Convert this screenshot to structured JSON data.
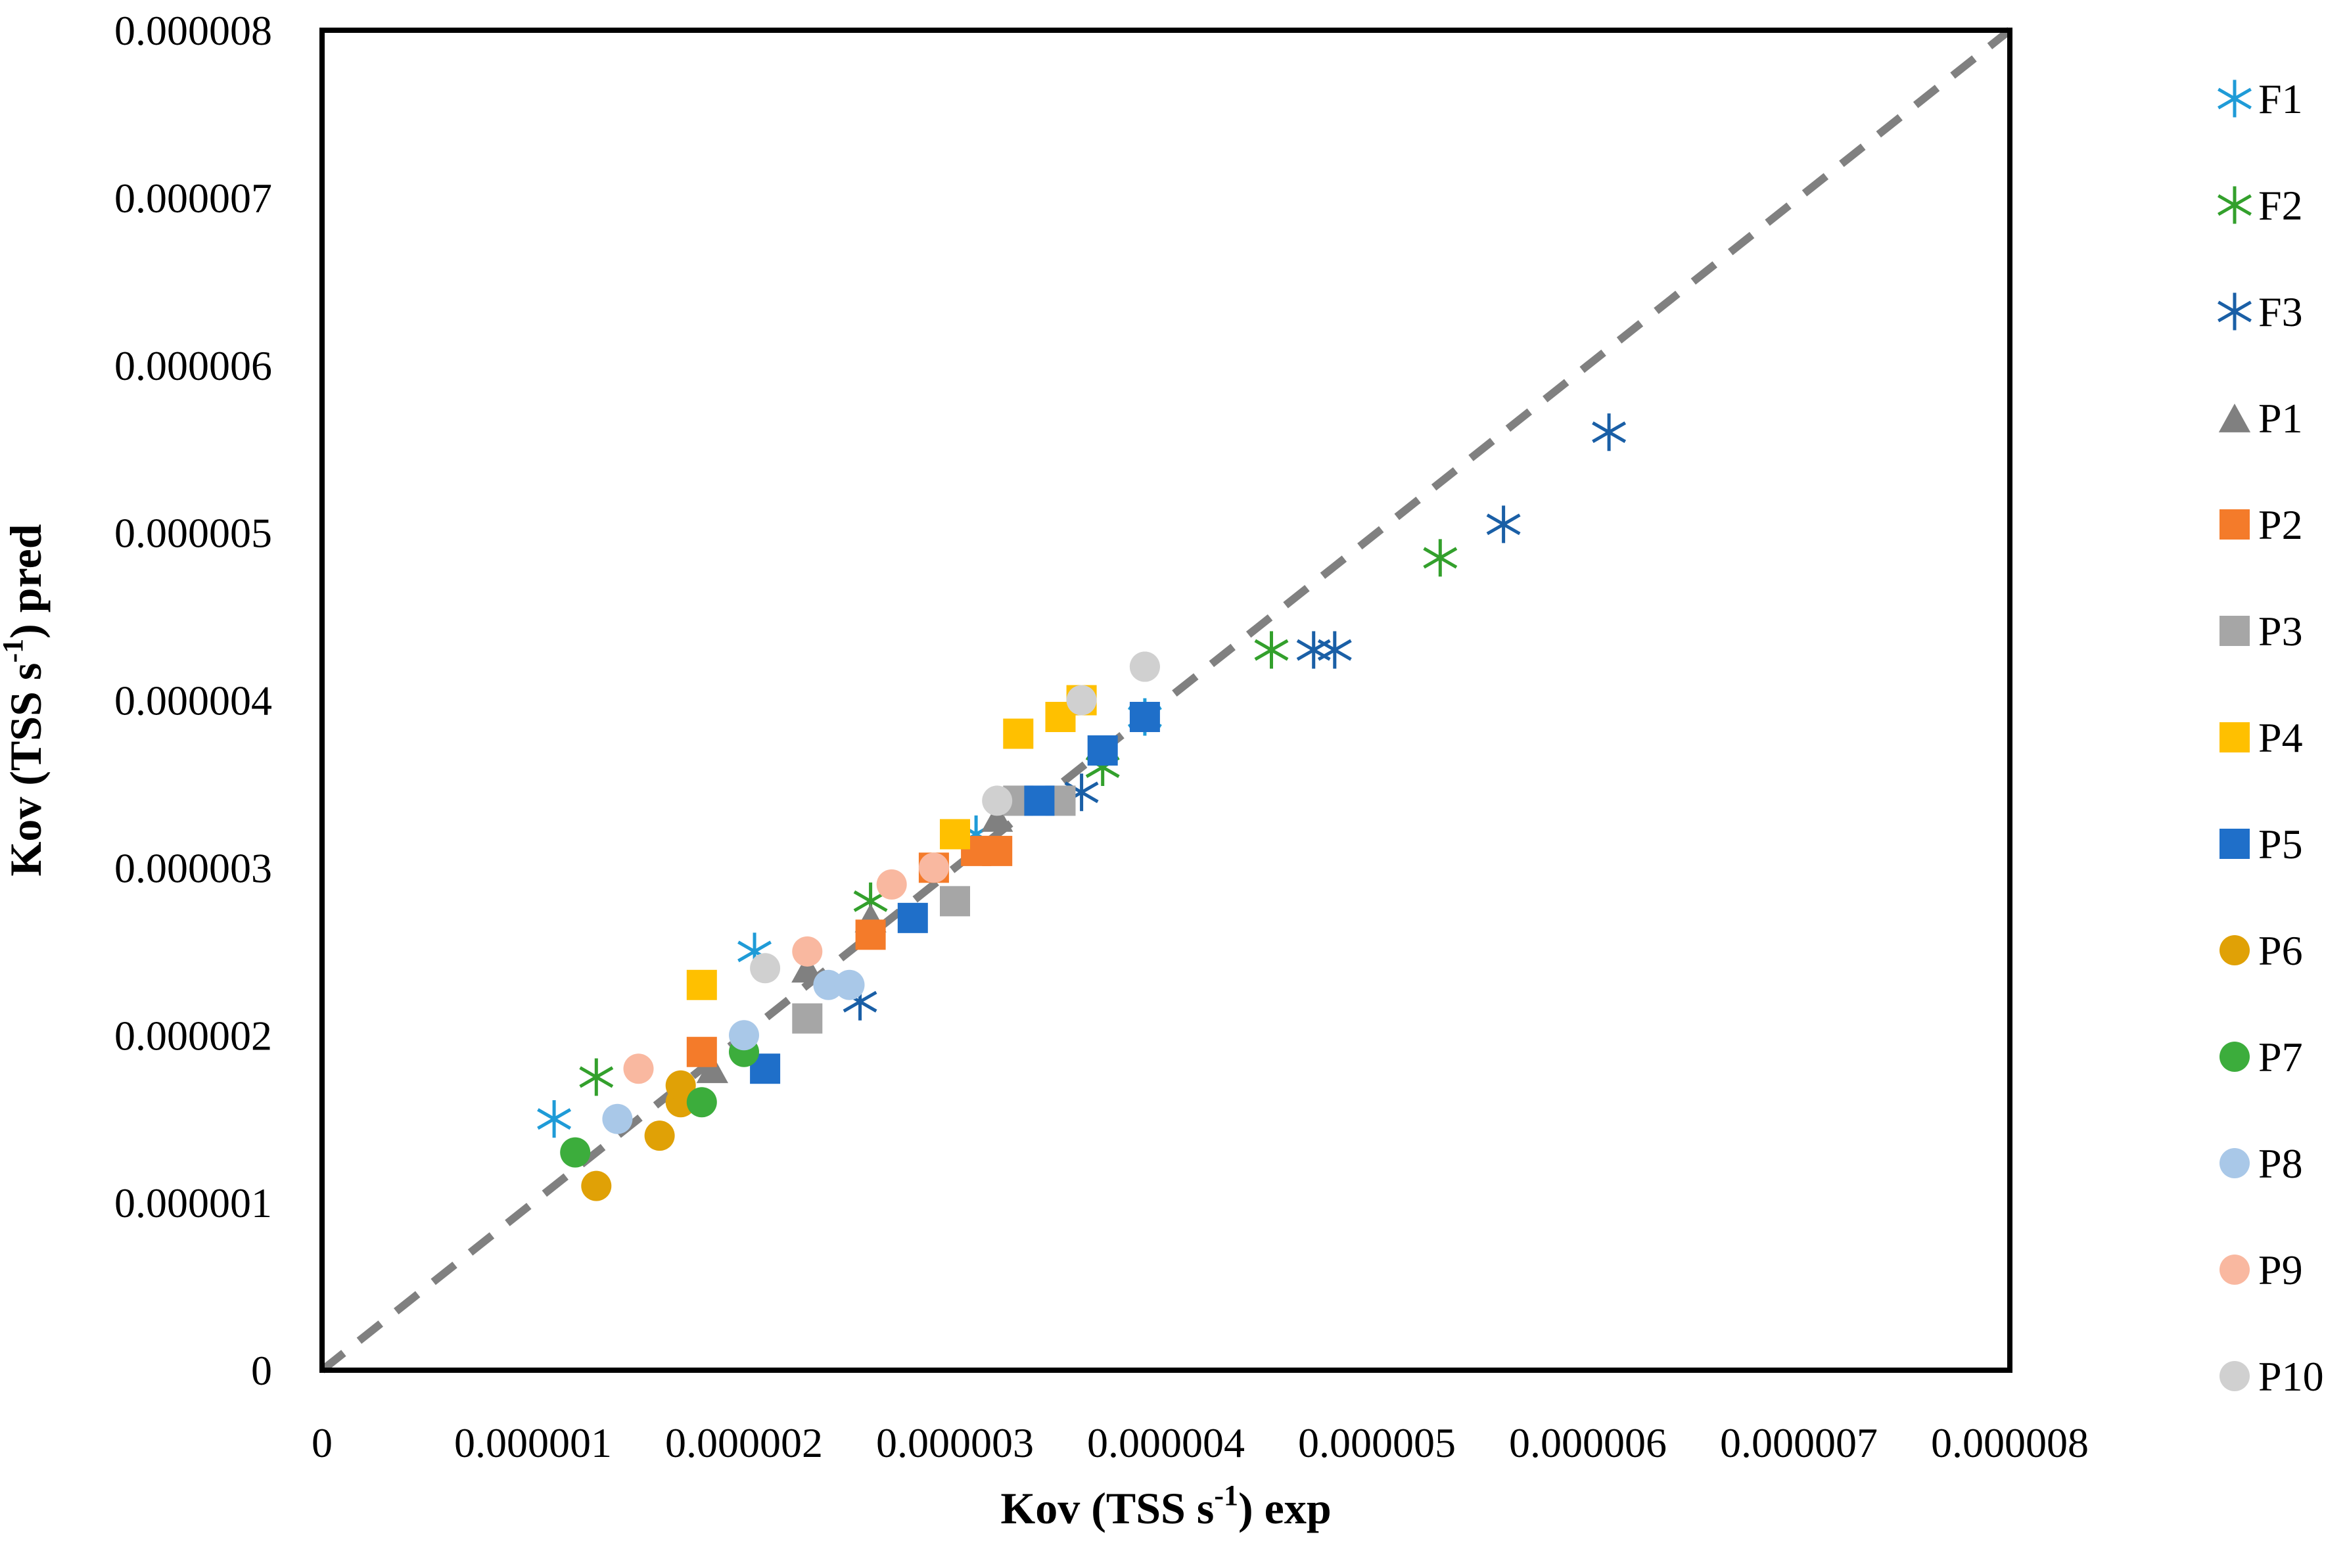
{
  "chart_data": {
    "type": "scatter",
    "xlabel": {
      "main": "Kov (TSS s",
      "sup": "-1",
      "tail": ") exp"
    },
    "ylabel": {
      "main": "Kov  (TSS s",
      "sup": "-1",
      "tail": ") pred"
    },
    "xlim": [
      0,
      8e-06
    ],
    "ylim": [
      0,
      8e-06
    ],
    "x_ticks": [
      0,
      1e-06,
      2e-06,
      3e-06,
      4e-06,
      5e-06,
      6e-06,
      7e-06,
      8e-06
    ],
    "y_ticks": [
      0,
      1e-06,
      2e-06,
      3e-06,
      4e-06,
      5e-06,
      6e-06,
      7e-06,
      8e-06
    ],
    "x_tick_labels": [
      "0",
      "0.000001",
      "0.000002",
      "0.000003",
      "0.000004",
      "0.000005",
      "0.000006",
      "0.000007",
      "0.000008"
    ],
    "y_tick_labels": [
      "0",
      "0.000001",
      "0.000002",
      "0.000003",
      "0.000004",
      "0.000005",
      "0.000006",
      "0.000007",
      "0.000008"
    ],
    "grid": false,
    "legend_position": "right",
    "reference_line": {
      "style": "dashed",
      "color": "#808080",
      "from": [
        0,
        0
      ],
      "to": [
        8e-06,
        8e-06
      ]
    },
    "series": [
      {
        "name": "F1",
        "marker": "asterisk",
        "color": "#1f9bd7",
        "points": [
          [
            1.1e-06,
            1.5e-06
          ],
          [
            2.05e-06,
            2.5e-06
          ],
          [
            3.1e-06,
            3.2e-06
          ],
          [
            3.9e-06,
            3.9e-06
          ]
        ]
      },
      {
        "name": "F2",
        "marker": "asterisk",
        "color": "#33a02c",
        "points": [
          [
            1.3e-06,
            1.75e-06
          ],
          [
            2.6e-06,
            2.8e-06
          ],
          [
            3.7e-06,
            3.6e-06
          ],
          [
            4.5e-06,
            4.3e-06
          ],
          [
            5.3e-06,
            4.85e-06
          ]
        ]
      },
      {
        "name": "F3",
        "marker": "asterisk",
        "color": "#1a5fa6",
        "points": [
          [
            2.55e-06,
            2.2e-06
          ],
          [
            3.6e-06,
            3.45e-06
          ],
          [
            4.7e-06,
            4.3e-06
          ],
          [
            4.8e-06,
            4.3e-06
          ],
          [
            5.6e-06,
            5.05e-06
          ],
          [
            6.1e-06,
            5.6e-06
          ]
        ]
      },
      {
        "name": "P1",
        "marker": "triangle",
        "color": "#808080",
        "points": [
          [
            1.85e-06,
            1.8e-06
          ],
          [
            2.3e-06,
            2.4e-06
          ],
          [
            2.6e-06,
            2.7e-06
          ],
          [
            3.2e-06,
            3.3e-06
          ]
        ]
      },
      {
        "name": "P2",
        "marker": "square",
        "color": "#f47b2a",
        "points": [
          [
            1.8e-06,
            1.9e-06
          ],
          [
            2.6e-06,
            2.6e-06
          ],
          [
            2.9e-06,
            3e-06
          ],
          [
            3.1e-06,
            3.1e-06
          ],
          [
            3.2e-06,
            3.1e-06
          ]
        ]
      },
      {
        "name": "P3",
        "marker": "square",
        "color": "#a6a6a6",
        "points": [
          [
            2.3e-06,
            2.1e-06
          ],
          [
            3e-06,
            2.8e-06
          ],
          [
            3.3e-06,
            3.4e-06
          ],
          [
            3.5e-06,
            3.4e-06
          ]
        ]
      },
      {
        "name": "P4",
        "marker": "square",
        "color": "#ffc000",
        "points": [
          [
            1.8e-06,
            2.3e-06
          ],
          [
            3e-06,
            3.2e-06
          ],
          [
            3.3e-06,
            3.8e-06
          ],
          [
            3.5e-06,
            3.9e-06
          ],
          [
            3.6e-06,
            4e-06
          ]
        ]
      },
      {
        "name": "P5",
        "marker": "square",
        "color": "#1f6fc9",
        "points": [
          [
            2.1e-06,
            1.8e-06
          ],
          [
            2.8e-06,
            2.7e-06
          ],
          [
            3.4e-06,
            3.4e-06
          ],
          [
            3.7e-06,
            3.7e-06
          ],
          [
            3.9e-06,
            3.9e-06
          ]
        ]
      },
      {
        "name": "P6",
        "marker": "circle",
        "color": "#e0a106",
        "points": [
          [
            1.3e-06,
            1.1e-06
          ],
          [
            1.6e-06,
            1.4e-06
          ],
          [
            1.7e-06,
            1.6e-06
          ],
          [
            1.7e-06,
            1.7e-06
          ]
        ]
      },
      {
        "name": "P7",
        "marker": "circle",
        "color": "#3cad3c",
        "points": [
          [
            1.2e-06,
            1.3e-06
          ],
          [
            1.8e-06,
            1.6e-06
          ],
          [
            2e-06,
            1.9e-06
          ]
        ]
      },
      {
        "name": "P8",
        "marker": "circle",
        "color": "#a9c8e8",
        "points": [
          [
            1.4e-06,
            1.5e-06
          ],
          [
            2e-06,
            2e-06
          ],
          [
            2.4e-06,
            2.3e-06
          ],
          [
            2.5e-06,
            2.3e-06
          ]
        ]
      },
      {
        "name": "P9",
        "marker": "circle",
        "color": "#f9b8a0",
        "points": [
          [
            1.5e-06,
            1.8e-06
          ],
          [
            2.3e-06,
            2.5e-06
          ],
          [
            2.7e-06,
            2.9e-06
          ],
          [
            2.9e-06,
            3e-06
          ]
        ]
      },
      {
        "name": "P10",
        "marker": "circle",
        "color": "#d0d0d0",
        "points": [
          [
            2.1e-06,
            2.4e-06
          ],
          [
            3.2e-06,
            3.4e-06
          ],
          [
            3.6e-06,
            4e-06
          ],
          [
            3.9e-06,
            4.2e-06
          ],
          [
            3.9e-06,
            4.2e-06
          ]
        ]
      }
    ]
  }
}
